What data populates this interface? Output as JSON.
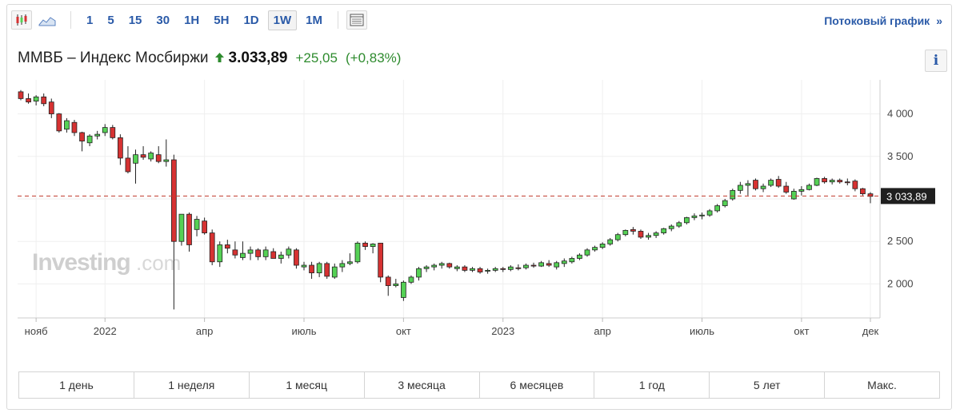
{
  "toolbar": {
    "candle_icon": "candlestick-icon",
    "area_icon": "area-chart-icon",
    "intervals": [
      "1",
      "5",
      "15",
      "30",
      "1H",
      "5H",
      "1D",
      "1W",
      "1M"
    ],
    "active_interval": "1W",
    "table_icon": "table-icon",
    "stream_label": "Потоковый график",
    "stream_chevron": "»"
  },
  "header": {
    "name": "ММВБ – Индекс Мосбиржи",
    "direction_icon": "up-arrow-icon",
    "price": "3.033,89",
    "change": "+25,05",
    "change_pct": "(+0,83%)",
    "info_label": "i",
    "up_color": "#2e8b2e"
  },
  "watermark": {
    "brand": "Investing",
    "suffix": ".com"
  },
  "ranges": [
    "1 день",
    "1 неделя",
    "1 месяц",
    "3 месяца",
    "6 месяцев",
    "1 год",
    "5 лет",
    "Макс."
  ],
  "chart_data": {
    "type": "candlestick",
    "ylim": [
      1600,
      4400
    ],
    "y_ticks": [
      2000,
      2500,
      3000,
      3500,
      4000
    ],
    "y_tick_labels": [
      "2 000",
      "2 500",
      "",
      "3 500",
      "4 000"
    ],
    "x_ticks": [
      {
        "label": "нояб",
        "week": 2
      },
      {
        "label": "2022",
        "week": 11
      },
      {
        "label": "апр",
        "week": 24
      },
      {
        "label": "июль",
        "week": 37
      },
      {
        "label": "окт",
        "week": 50
      },
      {
        "label": "2023",
        "week": 63
      },
      {
        "label": "апр",
        "week": 76
      },
      {
        "label": "июль",
        "week": 89
      },
      {
        "label": "окт",
        "week": 102
      },
      {
        "label": "дек",
        "week": 111
      }
    ],
    "last_value": 3033.89,
    "last_value_label": "3 033,89",
    "up_color": "#55d155",
    "down_color": "#d63232",
    "candles": [
      [
        4260,
        4280,
        4160,
        4180
      ],
      [
        4180,
        4240,
        4120,
        4140
      ],
      [
        4150,
        4220,
        4100,
        4200
      ],
      [
        4200,
        4240,
        4090,
        4120
      ],
      [
        4140,
        4180,
        3950,
        4000
      ],
      [
        4000,
        4010,
        3780,
        3800
      ],
      [
        3820,
        3950,
        3780,
        3920
      ],
      [
        3900,
        3930,
        3740,
        3780
      ],
      [
        3780,
        3790,
        3560,
        3680
      ],
      [
        3660,
        3760,
        3620,
        3740
      ],
      [
        3740,
        3800,
        3700,
        3760
      ],
      [
        3780,
        3880,
        3740,
        3840
      ],
      [
        3840,
        3870,
        3700,
        3720
      ],
      [
        3720,
        3760,
        3400,
        3480
      ],
      [
        3480,
        3620,
        3300,
        3320
      ],
      [
        3420,
        3580,
        3180,
        3520
      ],
      [
        3520,
        3620,
        3460,
        3490
      ],
      [
        3470,
        3560,
        3440,
        3540
      ],
      [
        3520,
        3620,
        3420,
        3440
      ],
      [
        3440,
        3700,
        3380,
        3460
      ],
      [
        3460,
        3520,
        1700,
        2500
      ],
      [
        2500,
        2800,
        2450,
        2820
      ],
      [
        2820,
        2840,
        2380,
        2460
      ],
      [
        2640,
        2800,
        2560,
        2760
      ],
      [
        2740,
        2780,
        2580,
        2600
      ],
      [
        2600,
        2640,
        2220,
        2260
      ],
      [
        2260,
        2500,
        2200,
        2460
      ],
      [
        2460,
        2520,
        2360,
        2420
      ],
      [
        2400,
        2500,
        2300,
        2340
      ],
      [
        2310,
        2500,
        2280,
        2360
      ],
      [
        2360,
        2440,
        2280,
        2400
      ],
      [
        2400,
        2420,
        2280,
        2320
      ],
      [
        2320,
        2440,
        2280,
        2400
      ],
      [
        2380,
        2420,
        2300,
        2300
      ],
      [
        2300,
        2380,
        2240,
        2340
      ],
      [
        2340,
        2440,
        2300,
        2410
      ],
      [
        2400,
        2420,
        2180,
        2220
      ],
      [
        2200,
        2260,
        2160,
        2220
      ],
      [
        2220,
        2260,
        2060,
        2130
      ],
      [
        2130,
        2260,
        2080,
        2240
      ],
      [
        2240,
        2260,
        2060,
        2090
      ],
      [
        2080,
        2240,
        2060,
        2200
      ],
      [
        2200,
        2280,
        2140,
        2240
      ],
      [
        2240,
        2360,
        2220,
        2260
      ],
      [
        2260,
        2500,
        2240,
        2480
      ],
      [
        2480,
        2500,
        2400,
        2440
      ],
      [
        2440,
        2480,
        2360,
        2470
      ],
      [
        2480,
        2480,
        2020,
        2080
      ],
      [
        2080,
        2100,
        1860,
        1980
      ],
      [
        1980,
        2060,
        1960,
        2000
      ],
      [
        1840,
        2040,
        1800,
        2020
      ],
      [
        2020,
        2100,
        2000,
        2080
      ],
      [
        2080,
        2200,
        2040,
        2180
      ],
      [
        2180,
        2220,
        2140,
        2200
      ],
      [
        2200,
        2240,
        2160,
        2220
      ],
      [
        2220,
        2260,
        2180,
        2240
      ],
      [
        2240,
        2250,
        2180,
        2200
      ],
      [
        2180,
        2220,
        2150,
        2200
      ],
      [
        2200,
        2220,
        2140,
        2160
      ],
      [
        2160,
        2200,
        2140,
        2180
      ],
      [
        2180,
        2200,
        2120,
        2140
      ],
      [
        2150,
        2180,
        2120,
        2160
      ],
      [
        2160,
        2200,
        2140,
        2180
      ],
      [
        2180,
        2200,
        2140,
        2170
      ],
      [
        2170,
        2220,
        2150,
        2200
      ],
      [
        2190,
        2230,
        2160,
        2180
      ],
      [
        2190,
        2240,
        2170,
        2220
      ],
      [
        2220,
        2250,
        2190,
        2210
      ],
      [
        2210,
        2270,
        2200,
        2250
      ],
      [
        2240,
        2280,
        2200,
        2220
      ],
      [
        2200,
        2270,
        2170,
        2250
      ],
      [
        2240,
        2300,
        2200,
        2270
      ],
      [
        2260,
        2320,
        2240,
        2300
      ],
      [
        2300,
        2360,
        2280,
        2340
      ],
      [
        2340,
        2420,
        2320,
        2400
      ],
      [
        2400,
        2450,
        2380,
        2430
      ],
      [
        2430,
        2490,
        2410,
        2470
      ],
      [
        2470,
        2540,
        2450,
        2520
      ],
      [
        2520,
        2600,
        2500,
        2580
      ],
      [
        2580,
        2640,
        2560,
        2630
      ],
      [
        2640,
        2670,
        2580,
        2620
      ],
      [
        2620,
        2640,
        2530,
        2550
      ],
      [
        2550,
        2600,
        2520,
        2570
      ],
      [
        2570,
        2620,
        2540,
        2600
      ],
      [
        2600,
        2660,
        2580,
        2650
      ],
      [
        2650,
        2700,
        2620,
        2680
      ],
      [
        2680,
        2740,
        2660,
        2720
      ],
      [
        2720,
        2790,
        2700,
        2780
      ],
      [
        2780,
        2830,
        2750,
        2800
      ],
      [
        2800,
        2840,
        2760,
        2810
      ],
      [
        2810,
        2880,
        2790,
        2860
      ],
      [
        2860,
        2940,
        2840,
        2920
      ],
      [
        2920,
        3000,
        2900,
        2980
      ],
      [
        3000,
        3120,
        2980,
        3100
      ],
      [
        3100,
        3200,
        3060,
        3160
      ],
      [
        3160,
        3220,
        3040,
        3180
      ],
      [
        3220,
        3240,
        3100,
        3120
      ],
      [
        3120,
        3180,
        3080,
        3150
      ],
      [
        3160,
        3240,
        3140,
        3220
      ],
      [
        3230,
        3270,
        3130,
        3150
      ],
      [
        3150,
        3200,
        3060,
        3080
      ],
      [
        3000,
        3120,
        2990,
        3090
      ],
      [
        3090,
        3150,
        3040,
        3110
      ],
      [
        3110,
        3180,
        3100,
        3160
      ],
      [
        3160,
        3250,
        3150,
        3240
      ],
      [
        3240,
        3260,
        3180,
        3200
      ],
      [
        3200,
        3240,
        3170,
        3220
      ],
      [
        3220,
        3240,
        3180,
        3200
      ],
      [
        3200,
        3240,
        3160,
        3190
      ],
      [
        3210,
        3230,
        3090,
        3120
      ],
      [
        3120,
        3130,
        3040,
        3060
      ],
      [
        3060,
        3080,
        2950,
        3030
      ]
    ]
  }
}
